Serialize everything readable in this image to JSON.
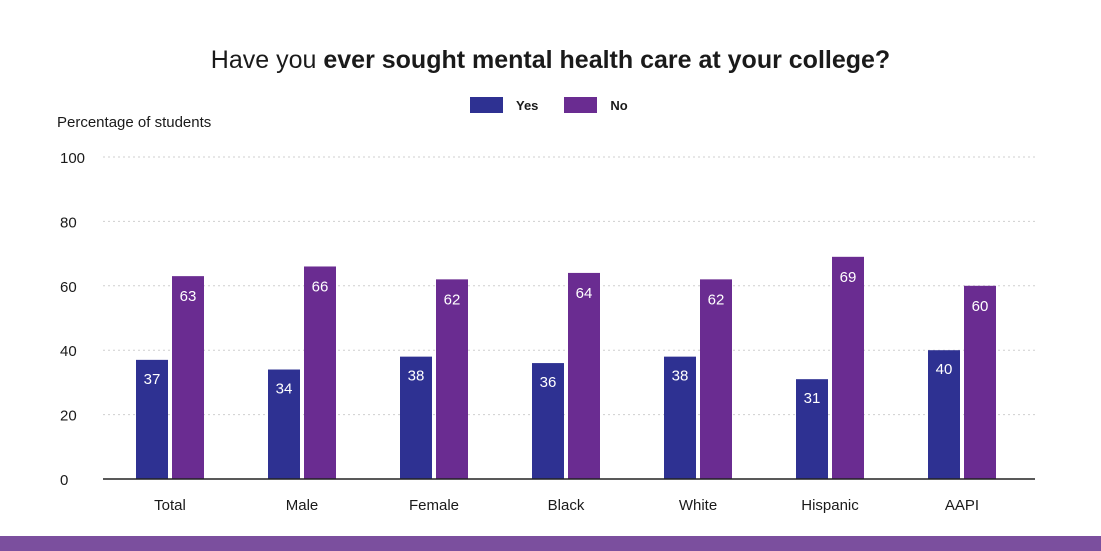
{
  "title": {
    "prefix": "Have you ",
    "emphasis": "ever sought mental health care at your college?"
  },
  "colors": {
    "yes": "#2e3192",
    "no": "#6a2c91",
    "grid": "#cfcfcf",
    "axis": "#222222",
    "band": "#7b4f9e"
  },
  "chart_data": {
    "type": "bar",
    "title": "Have you ever sought mental health care at your college?",
    "xlabel": "",
    "ylabel": "Percentage of students",
    "ylim": [
      0,
      100
    ],
    "yticks": [
      0,
      20,
      40,
      60,
      80,
      100
    ],
    "grid": true,
    "legend_position": "top-center",
    "categories": [
      "Total",
      "Male",
      "Female",
      "Black",
      "White",
      "Hispanic",
      "AAPI"
    ],
    "series": [
      {
        "name": "Yes",
        "values": [
          37,
          34,
          38,
          36,
          38,
          31,
          40
        ]
      },
      {
        "name": "No",
        "values": [
          63,
          66,
          62,
          64,
          62,
          69,
          60
        ]
      }
    ]
  }
}
